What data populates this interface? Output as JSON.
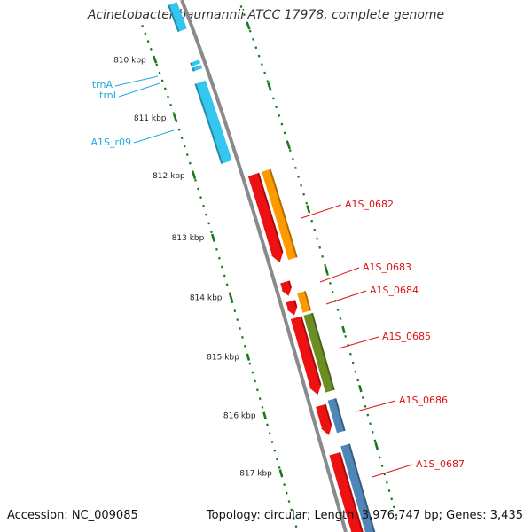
{
  "title": "Acinetobacter baumannii ATCC 17978, complete genome",
  "accession_label": "Accession: NC_009085",
  "summary_label": "Topology: circular; Length: 3,976,747 bp; Genes: 3,435",
  "colors": {
    "backbone": "#8a8a8a",
    "tick": "#1a7a1a",
    "rna": "#33c7f0",
    "red": "#ee1111",
    "orange": "#ff9900",
    "olive": "#6b8e23",
    "steel": "#4f86b8",
    "red_label": "#dd1111",
    "blue_label": "#22aadd"
  },
  "ticks": [
    "810 kbp",
    "811 kbp",
    "812 kbp",
    "813 kbp",
    "814 kbp",
    "815 kbp",
    "816 kbp",
    "817 kbp"
  ],
  "feature_labels": [
    {
      "text": "trnA",
      "color": "blue"
    },
    {
      "text": "trnI",
      "color": "blue"
    },
    {
      "text": "A1S_r09",
      "color": "blue"
    },
    {
      "text": "A1S_0682",
      "color": "red"
    },
    {
      "text": "A1S_0683",
      "color": "red"
    },
    {
      "text": "A1S_0684",
      "color": "red"
    },
    {
      "text": "A1S_0685",
      "color": "red"
    },
    {
      "text": "A1S_0686",
      "color": "red"
    },
    {
      "text": "A1S_0687",
      "color": "red"
    }
  ]
}
